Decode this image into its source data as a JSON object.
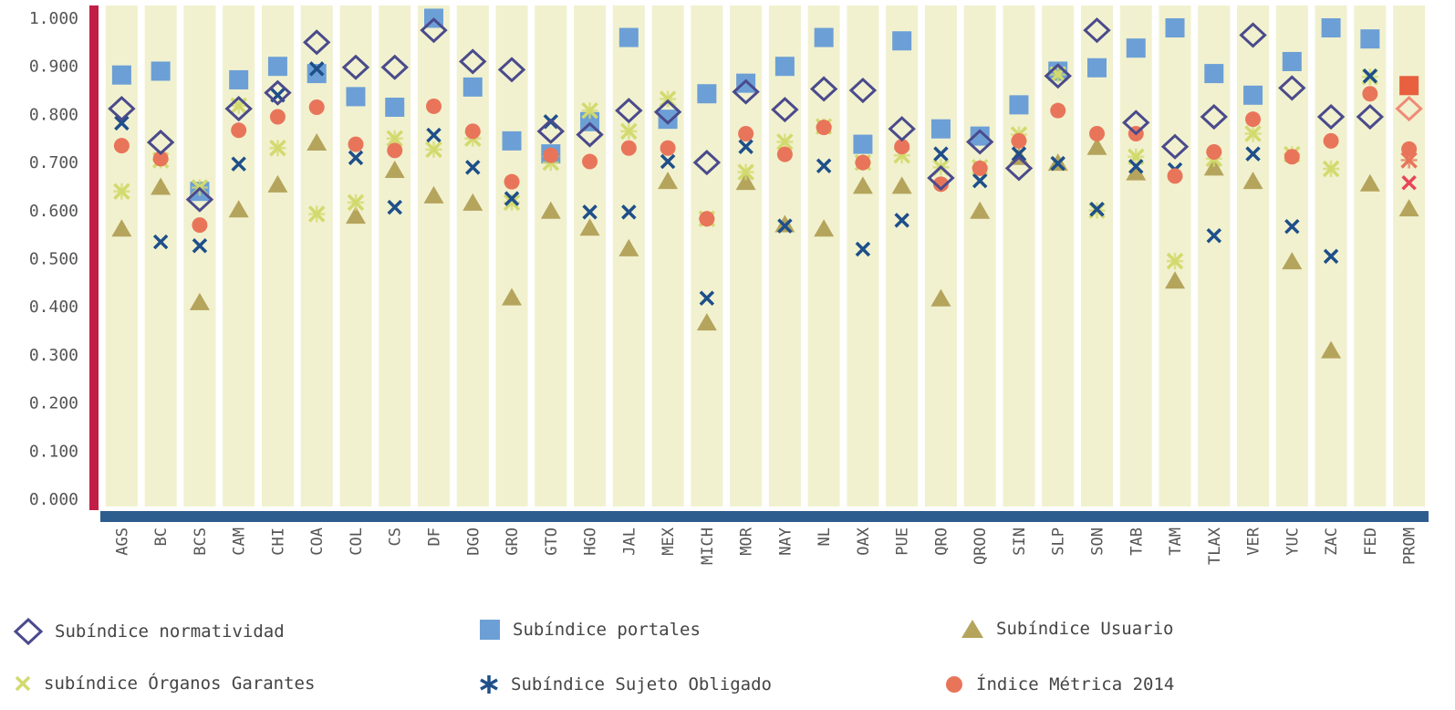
{
  "chart_data": {
    "type": "scatter",
    "ylim": [
      0,
      1
    ],
    "y_ticks": [
      "0.000",
      "0.100",
      "0.200",
      "0.300",
      "0.400",
      "0.500",
      "0.600",
      "0.700",
      "0.800",
      "0.900",
      "1.000"
    ],
    "categories": [
      "AGS",
      "BC",
      "BCS",
      "CAM",
      "CHI",
      "COA",
      "COL",
      "CS",
      "DF",
      "DGO",
      "GRO",
      "GTO",
      "HGO",
      "JAL",
      "MEX",
      "MICH",
      "MOR",
      "NAY",
      "NL",
      "OAX",
      "PUE",
      "QRO",
      "QROO",
      "SIN",
      "SLP",
      "SON",
      "TAB",
      "TAM",
      "TLAX",
      "VER",
      "YUC",
      "ZAC",
      "FED",
      "PROM"
    ],
    "series": [
      {
        "name": "Subíndice normatividad",
        "marker": "diamond",
        "color": "#4a4a8c",
        "values": [
          0.812,
          0.742,
          0.623,
          0.812,
          0.845,
          0.95,
          0.898,
          0.898,
          0.975,
          0.91,
          0.893,
          0.765,
          0.758,
          0.808,
          0.805,
          0.7,
          0.847,
          0.81,
          0.853,
          0.85,
          0.77,
          0.668,
          0.743,
          0.688,
          0.88,
          0.975,
          0.783,
          0.733,
          0.795,
          0.965,
          0.855,
          0.795,
          0.795,
          0.812
        ]
      },
      {
        "name": "Subíndice portales",
        "marker": "square",
        "color": "#6c9fd6",
        "values": [
          0.882,
          0.89,
          0.64,
          0.872,
          0.9,
          0.885,
          0.837,
          0.815,
          1.0,
          0.857,
          0.745,
          0.718,
          0.785,
          0.96,
          0.79,
          0.843,
          0.865,
          0.9,
          0.96,
          0.738,
          0.953,
          0.77,
          0.755,
          0.82,
          0.89,
          0.897,
          0.938,
          0.98,
          0.885,
          0.84,
          0.91,
          0.98,
          0.957,
          0.86
        ]
      },
      {
        "name": "Subíndice Usuario",
        "marker": "triangle",
        "color": "#b5a45c",
        "values": [
          0.563,
          0.65,
          0.41,
          0.603,
          0.655,
          0.742,
          0.59,
          0.685,
          0.632,
          0.617,
          0.42,
          0.6,
          0.565,
          0.522,
          0.662,
          0.368,
          0.66,
          0.572,
          0.563,
          0.652,
          0.652,
          0.418,
          0.6,
          0.712,
          0.7,
          0.733,
          0.68,
          0.455,
          0.69,
          0.662,
          0.495,
          0.31,
          0.657,
          0.605
        ]
      },
      {
        "name": "subíndice Órganos Garantes",
        "marker": "x",
        "color": "#d2da6e",
        "values": [
          0.64,
          0.705,
          0.648,
          0.818,
          0.73,
          0.593,
          0.617,
          0.75,
          0.727,
          0.75,
          0.617,
          0.7,
          0.808,
          0.765,
          0.832,
          0.583,
          0.68,
          0.743,
          0.775,
          0.7,
          0.715,
          0.69,
          0.69,
          0.758,
          0.883,
          0.6,
          0.712,
          0.495,
          0.708,
          0.76,
          0.717,
          0.687,
          0.878,
          0.705
        ]
      },
      {
        "name": "Subíndice Sujeto Obligado",
        "marker": "asterisk",
        "color": "#1e4f8a",
        "values": [
          0.782,
          0.535,
          0.527,
          0.697,
          0.84,
          0.895,
          0.71,
          0.607,
          0.757,
          0.69,
          0.625,
          0.785,
          0.597,
          0.597,
          0.702,
          0.418,
          0.733,
          0.568,
          0.693,
          0.52,
          0.58,
          0.718,
          0.662,
          0.718,
          0.698,
          0.603,
          0.692,
          0.685,
          0.548,
          0.718,
          0.567,
          0.505,
          0.88,
          0.658
        ]
      },
      {
        "name": "Índice Métrica 2014",
        "marker": "circle",
        "color": "#e8755a",
        "values": [
          0.735,
          0.708,
          0.57,
          0.767,
          0.795,
          0.815,
          0.738,
          0.725,
          0.817,
          0.765,
          0.66,
          0.715,
          0.702,
          0.73,
          0.73,
          0.583,
          0.76,
          0.717,
          0.773,
          0.7,
          0.733,
          0.655,
          0.688,
          0.745,
          0.808,
          0.76,
          0.76,
          0.672,
          0.722,
          0.79,
          0.712,
          0.745,
          0.843,
          0.728
        ]
      }
    ]
  }
}
